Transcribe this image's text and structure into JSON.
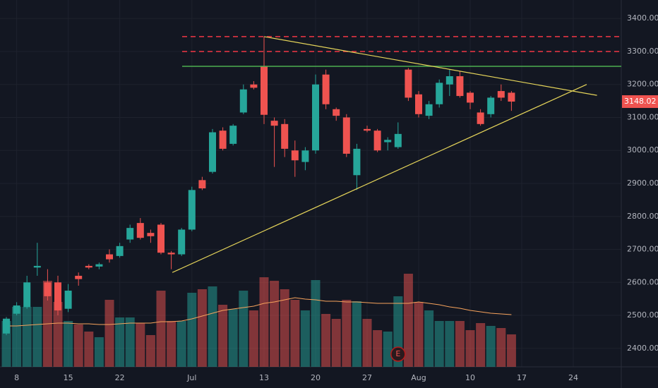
{
  "chart_data": {
    "type": "candlestick",
    "categories": [
      null,
      "8",
      null,
      null,
      null,
      null,
      "15",
      null,
      null,
      null,
      null,
      "22",
      null,
      null,
      null,
      null,
      null,
      null,
      "Jul",
      null,
      null,
      null,
      null,
      null,
      null,
      "13",
      null,
      null,
      null,
      null,
      "20",
      null,
      null,
      null,
      null,
      "27",
      null,
      null,
      null,
      null,
      "Aug",
      null,
      null,
      null,
      null,
      "10",
      null,
      null,
      null,
      null,
      "17",
      null,
      null,
      null,
      null,
      "24"
    ],
    "open": [
      2445,
      2505,
      2525,
      2645,
      2600,
      2600,
      2520,
      2620,
      2650,
      2648,
      2685,
      2680,
      2730,
      2780,
      2750,
      2775,
      2690,
      2685,
      2760,
      2910,
      2935,
      3060,
      3020,
      3115,
      3200,
      3255,
      3090,
      3080,
      3000,
      2965,
      3000,
      3230,
      3125,
      3100,
      2925,
      3065,
      3060,
      3025,
      3010,
      3245,
      3170,
      3105,
      3140,
      3200,
      3225,
      3175,
      3115,
      3110,
      3180,
      3175,
      null,
      null,
      null,
      null,
      null,
      null
    ],
    "high": [
      2495,
      2540,
      2620,
      2720,
      2640,
      2620,
      2595,
      2630,
      2655,
      2660,
      2700,
      2720,
      2775,
      2795,
      2760,
      2780,
      2695,
      2765,
      2890,
      2920,
      3065,
      3070,
      3080,
      3200,
      3210,
      3345,
      3100,
      3095,
      3030,
      3010,
      3230,
      3245,
      3130,
      3110,
      3020,
      3075,
      3065,
      3040,
      3085,
      3250,
      3180,
      3150,
      3215,
      3245,
      3240,
      3180,
      3125,
      3165,
      3200,
      3180,
      null,
      null,
      null,
      null,
      null,
      null
    ],
    "low": [
      2440,
      2500,
      2520,
      2620,
      2545,
      2500,
      2510,
      2590,
      2640,
      2640,
      2660,
      2675,
      2720,
      2730,
      2720,
      2685,
      2640,
      2680,
      2755,
      2880,
      2930,
      3000,
      3015,
      3110,
      3185,
      3080,
      2950,
      2980,
      2920,
      2940,
      2990,
      3125,
      3090,
      2980,
      2880,
      3055,
      2995,
      3000,
      3005,
      3150,
      3100,
      3095,
      3130,
      3165,
      3160,
      3125,
      3075,
      3100,
      3150,
      3120,
      null,
      null,
      null,
      null,
      null,
      null
    ],
    "close": [
      2490,
      2530,
      2600,
      2650,
      2558,
      2515,
      2575,
      2610,
      2645,
      2655,
      2670,
      2710,
      2765,
      2735,
      2740,
      2690,
      2685,
      2760,
      2880,
      2885,
      3055,
      3005,
      3075,
      3185,
      3190,
      3108,
      3075,
      3005,
      2970,
      3000,
      3200,
      3140,
      3105,
      2990,
      3005,
      3060,
      3000,
      3032,
      3050,
      3160,
      3110,
      3140,
      3205,
      3225,
      3165,
      3145,
      3080,
      3160,
      3160,
      3148.02,
      null,
      null,
      null,
      null,
      null,
      null
    ],
    "volume": [
      65,
      85,
      85,
      85,
      122,
      92,
      65,
      60,
      50,
      42,
      95,
      70,
      70,
      62,
      45,
      108,
      65,
      65,
      105,
      110,
      114,
      88,
      82,
      108,
      80,
      127,
      122,
      110,
      95,
      80,
      123,
      75,
      68,
      95,
      93,
      68,
      52,
      50,
      100,
      132,
      92,
      80,
      65,
      65,
      65,
      52,
      62,
      58,
      55,
      46,
      null,
      null,
      null,
      null,
      null,
      null
    ],
    "volume_ma": [
      58,
      58,
      59,
      60,
      61,
      62,
      62,
      61,
      61,
      60,
      60,
      61,
      62,
      62,
      62,
      64,
      64,
      65,
      68,
      72,
      76,
      80,
      82,
      84,
      86,
      90,
      92,
      95,
      98,
      96,
      95,
      93,
      93,
      92,
      92,
      91,
      90,
      90,
      90,
      90,
      92,
      90,
      88,
      85,
      83,
      80,
      78,
      76,
      75,
      74,
      null,
      null,
      null,
      null,
      null,
      null
    ],
    "up_color": "#26a69a",
    "down_color": "#ef5350",
    "ma_color": "#f7a35c",
    "ylim": [
      2344,
      3456
    ],
    "yticks": [
      {
        "value": 2400,
        "label": "2400.00"
      },
      {
        "value": 2500,
        "label": "2500.00"
      },
      {
        "value": 2600,
        "label": "2600.00"
      },
      {
        "value": 2700,
        "label": "2700.00"
      },
      {
        "value": 2800,
        "label": "2800.00"
      },
      {
        "value": 2900,
        "label": "2900.00"
      },
      {
        "value": 3000,
        "label": "3000.00"
      },
      {
        "value": 3100,
        "label": "3100.00"
      },
      {
        "value": 3200,
        "label": "3200.00"
      },
      {
        "value": 3300,
        "label": "3300.00"
      },
      {
        "value": 3400,
        "label": "3400.00"
      }
    ],
    "last_price": {
      "value": 3148.02,
      "label": "3148.02"
    },
    "grid": true,
    "levels": [
      {
        "price": 3345,
        "color": "#f23645",
        "dashed": true
      },
      {
        "price": 3300,
        "color": "#f23645",
        "dashed": true
      },
      {
        "price": 3255,
        "color": "#4caf50",
        "dashed": false
      }
    ],
    "trend_lines": [
      {
        "from": [
          25,
          3345
        ],
        "to": [
          57.3,
          3167
        ],
        "color": "#e6d55a"
      },
      {
        "from": [
          16.1,
          2630
        ],
        "to": [
          56.3,
          3200
        ],
        "color": "#e6d55a"
      }
    ],
    "earnings_marker": {
      "index": 38,
      "label": "E"
    }
  }
}
